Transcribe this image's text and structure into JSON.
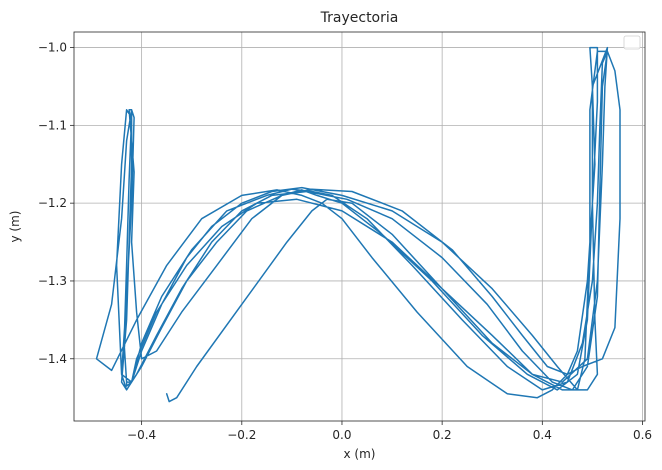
{
  "chart_data": {
    "type": "line",
    "title": "Trayectoria",
    "xlabel": "x (m)",
    "ylabel": "y (m)",
    "xlim": [
      -0.535,
      0.605
    ],
    "ylim": [
      -1.48,
      -0.98
    ],
    "xticks": [
      -0.4,
      -0.2,
      0.0,
      0.2,
      0.4,
      0.6
    ],
    "xtick_labels": [
      "−0.4",
      "−0.2",
      "0.0",
      "0.2",
      "0.4",
      "0.6"
    ],
    "yticks": [
      -1.4,
      -1.3,
      -1.2,
      -1.1,
      -1.0
    ],
    "ytick_labels": [
      "−1.4",
      "−1.3",
      "−1.2",
      "−1.1",
      "−1.0"
    ],
    "grid": true,
    "legend": "top-right (empty)",
    "series": [
      {
        "color": "#1f77b4",
        "x": [
          -0.35,
          -0.345,
          -0.33,
          -0.29,
          -0.2,
          -0.11,
          -0.06,
          -0.03,
          0.02,
          0.1,
          0.2,
          0.3,
          0.38,
          0.44,
          0.49,
          0.51,
          0.52,
          0.525,
          0.53,
          0.5,
          0.5,
          0.505,
          0.51,
          0.49,
          0.47,
          0.43,
          0.38,
          0.3,
          0.2,
          0.1,
          0.0,
          -0.08,
          -0.14,
          -0.2,
          -0.26,
          -0.31,
          -0.36,
          -0.4,
          -0.42,
          -0.43,
          -0.44,
          -0.43,
          -0.425,
          -0.42,
          -0.42,
          -0.425,
          -0.415,
          -0.42,
          -0.41,
          -0.4,
          -0.37,
          -0.32,
          -0.25,
          -0.18,
          -0.12,
          -0.08,
          -0.05,
          0.0,
          0.08,
          0.18,
          0.28,
          0.37,
          0.43,
          0.47,
          0.49,
          0.5,
          0.51,
          0.51,
          0.495,
          0.5,
          0.505,
          0.49,
          0.47,
          0.45,
          0.41,
          0.36,
          0.3,
          0.22,
          0.12,
          0.02,
          -0.06,
          -0.12,
          -0.19,
          -0.25,
          -0.31,
          -0.36,
          -0.4,
          -0.42,
          -0.43,
          -0.435,
          -0.43,
          -0.425,
          -0.42,
          -0.43,
          -0.44,
          -0.45,
          -0.44,
          -0.42,
          -0.4,
          -0.36,
          -0.3,
          -0.23,
          -0.15,
          -0.1,
          -0.06,
          -0.02,
          0.05,
          0.14,
          0.24,
          0.33,
          0.4,
          0.45,
          0.48,
          0.5,
          0.51,
          0.515,
          0.52,
          0.53,
          0.52,
          0.515,
          0.51,
          0.49,
          0.46,
          0.42,
          0.36,
          0.29,
          0.2,
          0.1,
          0.01,
          -0.07,
          -0.14,
          -0.2,
          -0.26,
          -0.32,
          -0.37,
          -0.41,
          -0.43,
          -0.44,
          -0.43,
          -0.42,
          -0.415,
          -0.42,
          -0.43,
          -0.44,
          -0.46,
          -0.49,
          -0.46,
          -0.41,
          -0.35,
          -0.28,
          -0.2,
          -0.13,
          -0.08,
          -0.04,
          0.0,
          0.06,
          0.15,
          0.25,
          0.33,
          0.39,
          0.42,
          0.45,
          0.48,
          0.52,
          0.545,
          0.555,
          0.555,
          0.545,
          0.53,
          0.51,
          0.495,
          0.495,
          0.485,
          0.47,
          0.44,
          0.38,
          0.3,
          0.2,
          0.1,
          0.0,
          -0.09,
          -0.17,
          -0.24,
          -0.31,
          -0.37,
          -0.41,
          -0.42,
          -0.43,
          -0.43
        ],
        "y": [
          -1.445,
          -1.455,
          -1.45,
          -1.41,
          -1.33,
          -1.25,
          -1.21,
          -1.195,
          -1.2,
          -1.24,
          -1.31,
          -1.38,
          -1.42,
          -1.43,
          -1.4,
          -1.3,
          -1.15,
          -1.05,
          -1.0,
          -1.05,
          -1.2,
          -1.35,
          -1.42,
          -1.44,
          -1.44,
          -1.41,
          -1.37,
          -1.31,
          -1.25,
          -1.21,
          -1.19,
          -1.18,
          -1.185,
          -1.2,
          -1.23,
          -1.27,
          -1.33,
          -1.39,
          -1.43,
          -1.44,
          -1.43,
          -1.35,
          -1.25,
          -1.15,
          -1.08,
          -1.08,
          -1.16,
          -1.25,
          -1.34,
          -1.4,
          -1.39,
          -1.34,
          -1.28,
          -1.22,
          -1.19,
          -1.183,
          -1.19,
          -1.2,
          -1.24,
          -1.3,
          -1.37,
          -1.42,
          -1.44,
          -1.42,
          -1.35,
          -1.2,
          -1.07,
          -1.0,
          -1.0,
          -1.05,
          -1.15,
          -1.3,
          -1.39,
          -1.42,
          -1.41,
          -1.37,
          -1.32,
          -1.26,
          -1.21,
          -1.185,
          -1.182,
          -1.19,
          -1.21,
          -1.25,
          -1.3,
          -1.36,
          -1.41,
          -1.43,
          -1.43,
          -1.38,
          -1.28,
          -1.17,
          -1.09,
          -1.08,
          -1.15,
          -1.28,
          -1.42,
          -1.43,
          -1.38,
          -1.32,
          -1.26,
          -1.21,
          -1.19,
          -1.182,
          -1.185,
          -1.19,
          -1.22,
          -1.28,
          -1.35,
          -1.41,
          -1.44,
          -1.43,
          -1.38,
          -1.3,
          -1.2,
          -1.1,
          -1.02,
          -1.005,
          -1.05,
          -1.18,
          -1.32,
          -1.41,
          -1.44,
          -1.43,
          -1.39,
          -1.33,
          -1.27,
          -1.22,
          -1.195,
          -1.185,
          -1.19,
          -1.21,
          -1.25,
          -1.31,
          -1.37,
          -1.42,
          -1.44,
          -1.42,
          -1.32,
          -1.2,
          -1.09,
          -1.08,
          -1.12,
          -1.22,
          -1.33,
          -1.4,
          -1.415,
          -1.35,
          -1.28,
          -1.22,
          -1.19,
          -1.183,
          -1.19,
          -1.2,
          -1.22,
          -1.27,
          -1.34,
          -1.41,
          -1.445,
          -1.45,
          -1.44,
          -1.42,
          -1.41,
          -1.4,
          -1.36,
          -1.22,
          -1.08,
          -1.03,
          -1.005,
          -1.005,
          -1.08,
          -1.25,
          -1.4,
          -1.44,
          -1.44,
          -1.42,
          -1.37,
          -1.31,
          -1.25,
          -1.21,
          -1.195,
          -1.2,
          -1.23,
          -1.28,
          -1.34,
          -1.4,
          -1.43,
          -1.435,
          -1.43
        ]
      }
    ]
  }
}
